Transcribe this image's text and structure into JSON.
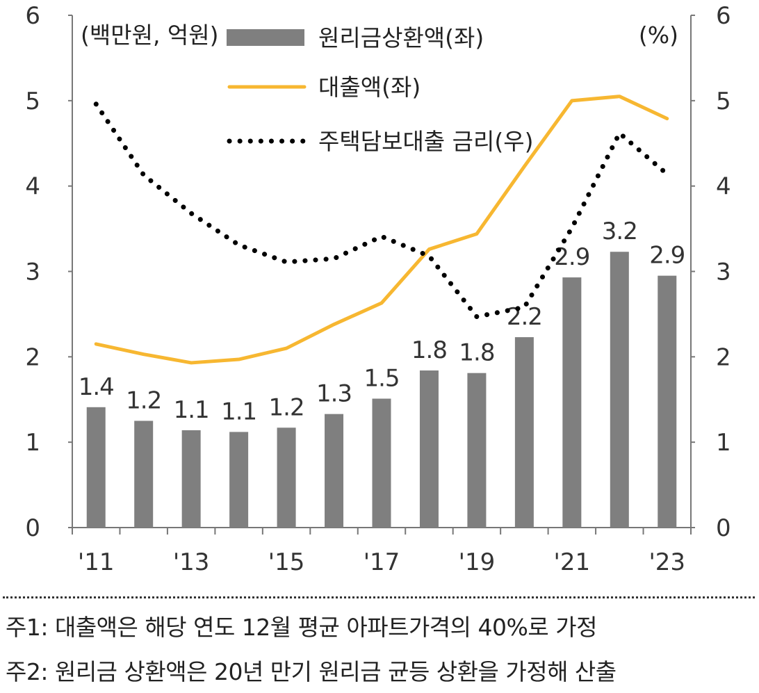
{
  "chart_data": {
    "type": "bar",
    "categories": [
      "2011",
      "2012",
      "2013",
      "2014",
      "2015",
      "2016",
      "2017",
      "2018",
      "2019",
      "2020",
      "2021",
      "2022",
      "2023"
    ],
    "x_tick_labels": [
      "'11",
      "'13",
      "'15",
      "'17",
      "'19",
      "'21",
      "'23"
    ],
    "left_axis": {
      "label": "(백만원, 억원)",
      "ylim": [
        0,
        6
      ],
      "ticks": [
        "0",
        "1",
        "2",
        "3",
        "4",
        "5",
        "6"
      ]
    },
    "right_axis": {
      "label": "(%)",
      "ylim": [
        0,
        6
      ],
      "ticks": [
        "0",
        "1",
        "2",
        "3",
        "4",
        "5",
        "6"
      ]
    },
    "series": [
      {
        "name": "원리금상환액(좌)",
        "type": "bar",
        "axis": "left",
        "color": "#7f7f7f",
        "values": [
          1.41,
          1.25,
          1.14,
          1.12,
          1.17,
          1.33,
          1.51,
          1.84,
          1.81,
          2.23,
          2.93,
          3.23,
          2.95
        ],
        "data_labels": [
          "1.4",
          "1.2",
          "1.1",
          "1.1",
          "1.2",
          "1.3",
          "1.5",
          "1.8",
          "1.8",
          "2.2",
          "2.9",
          "3.2",
          "2.9"
        ]
      },
      {
        "name": "대출액(좌)",
        "type": "line",
        "axis": "left",
        "color": "#f7b731",
        "values": [
          2.15,
          2.03,
          1.93,
          1.97,
          2.1,
          2.38,
          2.63,
          3.26,
          3.44,
          4.23,
          5.0,
          5.05,
          4.79
        ]
      },
      {
        "name": "주택담보대출 금리(우)",
        "type": "line",
        "style": "dotted",
        "axis": "right",
        "color": "#000000",
        "values": [
          4.96,
          4.13,
          3.68,
          3.31,
          3.11,
          3.15,
          3.41,
          3.18,
          2.47,
          2.58,
          3.51,
          4.62,
          4.14
        ]
      }
    ],
    "grid": false,
    "legend_position": "top-center"
  },
  "notes": {
    "note1": "주1: 대출액은 해당 연도 12월 평균 아파트가격의 40%로 가정",
    "note2": "주2: 원리금 상환액은 20년 만기 원리금 균등 상환을 가정해 산출"
  }
}
